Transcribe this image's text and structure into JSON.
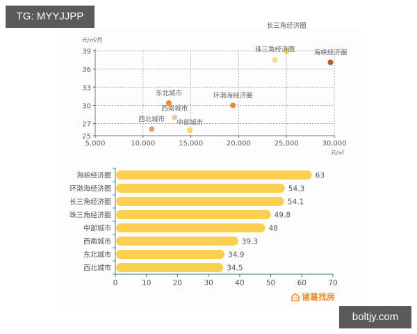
{
  "watermarks": {
    "top_left": "TG: MYYJJPP",
    "bottom_right": "boltjy.com"
  },
  "brand": {
    "label": "诸葛找房"
  },
  "chart_data": [
    {
      "type": "scatter",
      "title": "",
      "xlabel": "元/㎡",
      "ylabel": "元/㎡/月",
      "xlim": [
        5000,
        30000
      ],
      "ylim": [
        25,
        39
      ],
      "x_ticks": [
        "5,000",
        "10,000",
        "15,000",
        "20,000",
        "25,000",
        "30,000"
      ],
      "y_ticks": [
        "25",
        "27",
        "30",
        "33",
        "36",
        "39"
      ],
      "grid": true,
      "points": [
        {
          "label": "长三角经济圈",
          "x": 25000,
          "y": 39.0,
          "color": "#f9cc4f"
        },
        {
          "label": "珠三角经济圈",
          "x": 23800,
          "y": 37.5,
          "color": "#f7dc85"
        },
        {
          "label": "海峡经济圈",
          "x": 29600,
          "y": 37.1,
          "color": "#b65a2a"
        },
        {
          "label": "环渤海经济圈",
          "x": 19400,
          "y": 30.0,
          "color": "#e08a3c"
        },
        {
          "label": "东北城市",
          "x": 12700,
          "y": 30.4,
          "color": "#ea8f2e"
        },
        {
          "label": "西南城市",
          "x": 13300,
          "y": 28.0,
          "color": "#efc7a4"
        },
        {
          "label": "西北城市",
          "x": 10900,
          "y": 26.1,
          "color": "#e3a070"
        },
        {
          "label": "中部城市",
          "x": 14900,
          "y": 25.9,
          "color": "#f9d45c"
        }
      ]
    },
    {
      "type": "bar",
      "orientation": "horizontal",
      "title": "",
      "xlabel": "",
      "ylabel": "",
      "xlim": [
        0,
        70
      ],
      "x_ticks": [
        "0",
        "10",
        "20",
        "30",
        "40",
        "50",
        "60",
        "70"
      ],
      "grid": false,
      "bar_color": "#fbcf4f",
      "categories": [
        "海峡经济圈",
        "环渤海经济圈",
        "长三角经济圈",
        "珠三角经济圈",
        "中部城市",
        "西南城市",
        "东北城市",
        "西北城市"
      ],
      "values": [
        63,
        54.3,
        54.1,
        49.8,
        48,
        39.3,
        34.9,
        34.5
      ],
      "value_labels": [
        "63",
        "54.3",
        "54.1",
        "49.8",
        "48",
        "39.3",
        "34.9",
        "34.5"
      ]
    }
  ]
}
